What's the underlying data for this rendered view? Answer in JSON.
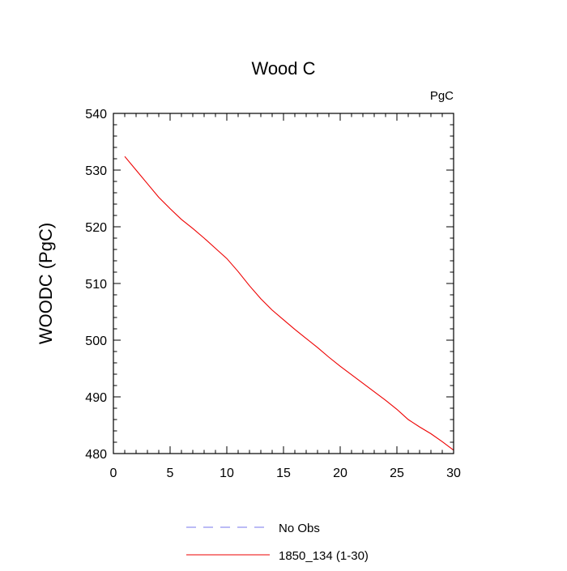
{
  "chart_data": {
    "type": "line",
    "title": "Wood C",
    "units_label": "PgC",
    "ylabel": "WOODC  (PgC)",
    "xlabel": "",
    "xlim": [
      0,
      30
    ],
    "ylim": [
      480,
      540
    ],
    "xticks": [
      0,
      5,
      10,
      15,
      20,
      25,
      30
    ],
    "yticks": [
      480,
      490,
      500,
      510,
      520,
      530,
      540
    ],
    "grid": false,
    "legend_position": "bottom",
    "legend": [
      {
        "label": "No Obs",
        "style": "dashed",
        "color": "#7777ee"
      },
      {
        "label": "1850_134 (1-30)",
        "style": "solid",
        "color": "#ee0000"
      }
    ],
    "series": [
      {
        "name": "1850_134 (1-30)",
        "color": "#ee0000",
        "x": [
          1,
          2,
          3,
          4,
          5,
          6,
          7,
          8,
          9,
          10,
          11,
          12,
          13,
          14,
          15,
          16,
          17,
          18,
          19,
          20,
          21,
          22,
          23,
          24,
          25,
          26,
          27,
          28,
          29,
          30
        ],
        "y": [
          532.4,
          530.0,
          527.6,
          525.2,
          523.2,
          521.3,
          519.7,
          518.0,
          516.2,
          514.4,
          512.1,
          509.6,
          507.3,
          505.3,
          503.6,
          501.9,
          500.3,
          498.7,
          497.0,
          495.4,
          493.9,
          492.4,
          490.9,
          489.4,
          487.8,
          486.0,
          484.7,
          483.5,
          482.1,
          480.6
        ]
      }
    ]
  }
}
